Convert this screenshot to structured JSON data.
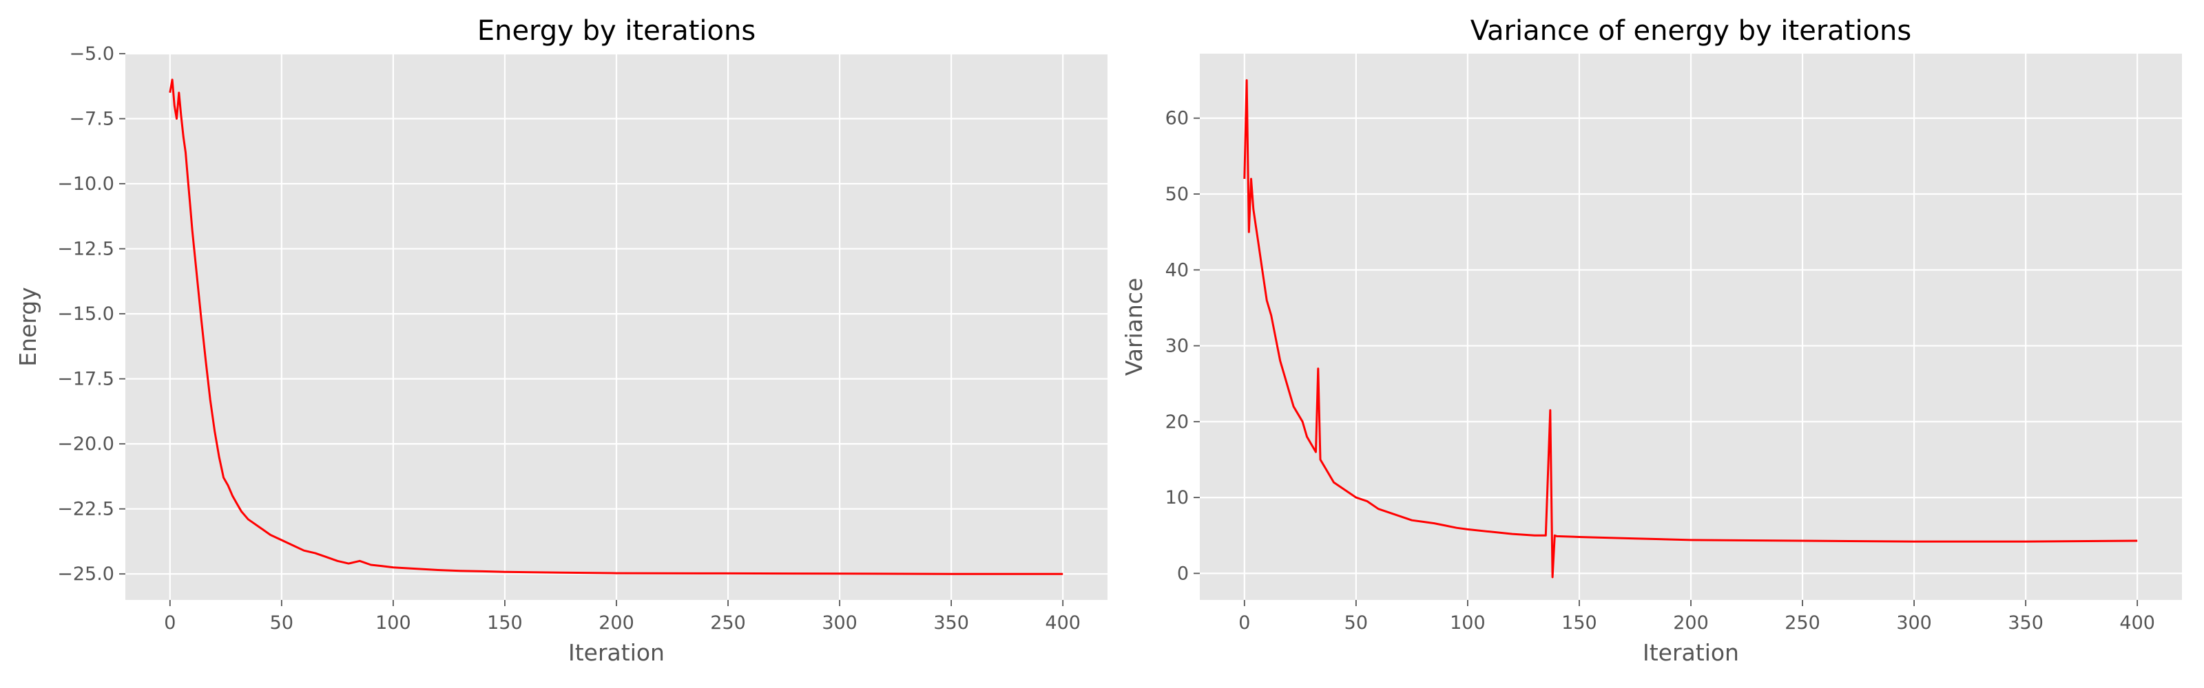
{
  "chart_data": [
    {
      "type": "line",
      "title": "Energy by iterations",
      "xlabel": "Iteration",
      "ylabel": "Energy",
      "xlim": [
        -20,
        420
      ],
      "ylim": [
        -26.0,
        -5.0
      ],
      "grid": true,
      "line_color": "#ff0000",
      "background_color": "#e5e5e5",
      "xticks": [
        0,
        50,
        100,
        150,
        200,
        250,
        300,
        350,
        400
      ],
      "yticks": [
        -25.0,
        -22.5,
        -20.0,
        -17.5,
        -15.0,
        -12.5,
        -10.0,
        -7.5,
        -5.0
      ],
      "xtick_labels": [
        "0",
        "50",
        "100",
        "150",
        "200",
        "250",
        "300",
        "350",
        "400"
      ],
      "ytick_labels": [
        "−25.0",
        "−22.5",
        "−20.0",
        "−17.5",
        "−15.0",
        "−12.5",
        "−10.0",
        "−7.5",
        "−5.0"
      ],
      "series": [
        {
          "x": [
            0,
            1,
            2,
            3,
            4,
            5,
            6,
            7,
            8,
            9,
            10,
            12,
            14,
            16,
            18,
            20,
            22,
            24,
            26,
            28,
            30,
            32,
            35,
            40,
            45,
            50,
            55,
            60,
            65,
            70,
            75,
            80,
            85,
            90,
            95,
            100,
            110,
            120,
            130,
            140,
            150,
            175,
            200,
            250,
            300,
            350,
            400
          ],
          "y": [
            -6.5,
            -6.0,
            -7.0,
            -7.5,
            -6.5,
            -7.4,
            -8.2,
            -8.8,
            -9.8,
            -10.8,
            -11.8,
            -13.5,
            -15.2,
            -16.8,
            -18.3,
            -19.5,
            -20.5,
            -21.3,
            -21.6,
            -22.0,
            -22.3,
            -22.6,
            -22.9,
            -23.2,
            -23.5,
            -23.7,
            -23.9,
            -24.1,
            -24.2,
            -24.35,
            -24.5,
            -24.6,
            -24.5,
            -24.65,
            -24.7,
            -24.75,
            -24.8,
            -24.85,
            -24.88,
            -24.9,
            -24.92,
            -24.95,
            -24.97,
            -24.98,
            -24.99,
            -25.0,
            -25.0
          ]
        }
      ]
    },
    {
      "type": "line",
      "title": "Variance of energy by iterations",
      "xlabel": "Iteration",
      "ylabel": "Variance",
      "xlim": [
        -20,
        420
      ],
      "ylim": [
        -3.5,
        68.5
      ],
      "grid": true,
      "line_color": "#ff0000",
      "background_color": "#e5e5e5",
      "xticks": [
        0,
        50,
        100,
        150,
        200,
        250,
        300,
        350,
        400
      ],
      "yticks": [
        0,
        10,
        20,
        30,
        40,
        50,
        60
      ],
      "xtick_labels": [
        "0",
        "50",
        "100",
        "150",
        "200",
        "250",
        "300",
        "350",
        "400"
      ],
      "ytick_labels": [
        "0",
        "10",
        "20",
        "30",
        "40",
        "50",
        "60"
      ],
      "series": [
        {
          "x": [
            0,
            1,
            2,
            3,
            4,
            5,
            6,
            8,
            10,
            12,
            14,
            16,
            18,
            20,
            22,
            24,
            26,
            28,
            30,
            32,
            33,
            34,
            36,
            38,
            40,
            45,
            50,
            55,
            60,
            65,
            70,
            75,
            80,
            85,
            90,
            95,
            100,
            110,
            120,
            130,
            135,
            137,
            138,
            139,
            140,
            150,
            175,
            200,
            250,
            300,
            350,
            400
          ],
          "y": [
            52,
            65,
            45,
            52,
            48,
            46,
            44,
            40,
            36,
            34,
            31,
            28,
            26,
            24,
            22,
            21,
            20,
            18,
            17,
            16,
            27,
            15,
            14,
            13,
            12,
            11,
            10,
            9.5,
            8.5,
            8,
            7.5,
            7,
            6.8,
            6.6,
            6.3,
            6,
            5.8,
            5.5,
            5.2,
            5.0,
            5.0,
            21.5,
            -0.5,
            5.0,
            4.9,
            4.8,
            4.6,
            4.4,
            4.3,
            4.2,
            4.2,
            4.3
          ]
        }
      ]
    }
  ]
}
